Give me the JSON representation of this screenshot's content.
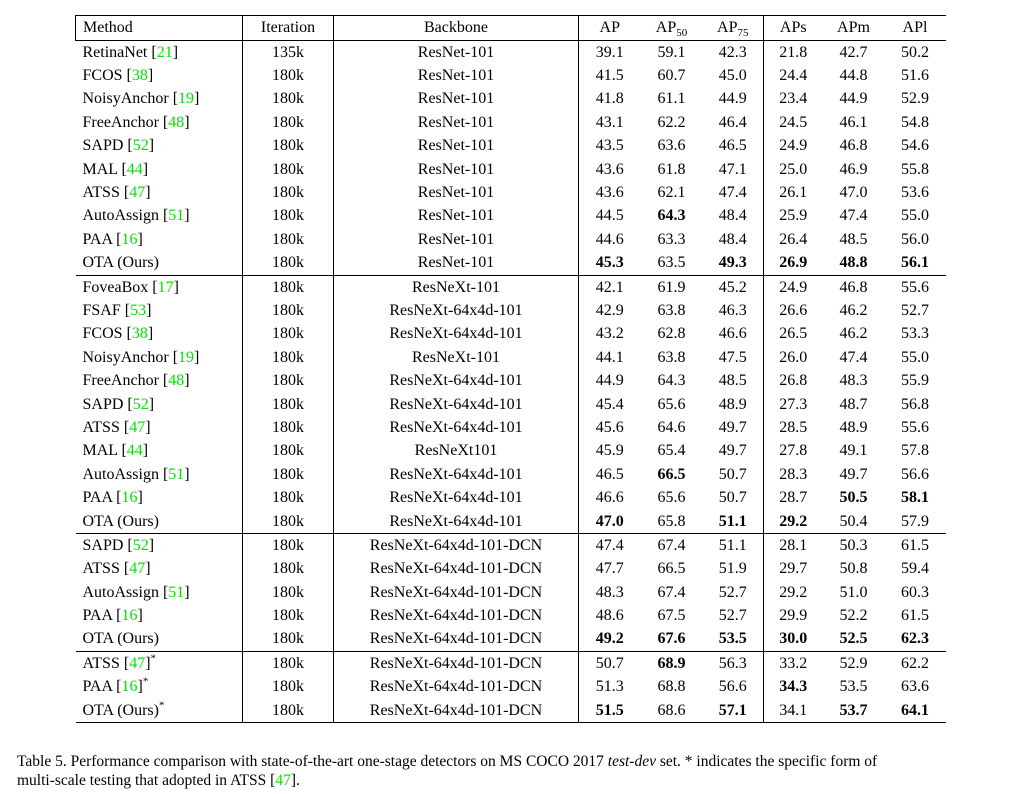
{
  "colors": {
    "reference_green": "#00E400",
    "text": "#000000",
    "background": "#ffffff"
  },
  "table": {
    "headers": [
      {
        "label": "Method",
        "sub": ""
      },
      {
        "label": "Iteration",
        "sub": ""
      },
      {
        "label": "Backbone",
        "sub": ""
      },
      {
        "label": "AP",
        "sub": ""
      },
      {
        "label": "AP",
        "sub": "50"
      },
      {
        "label": "AP",
        "sub": "75"
      },
      {
        "label": "APs",
        "sub": ""
      },
      {
        "label": "APm",
        "sub": ""
      },
      {
        "label": "APl",
        "sub": ""
      }
    ],
    "sections": [
      {
        "rows": [
          {
            "method": "RetinaNet",
            "ref": "21",
            "star": false,
            "iteration": "135k",
            "backbone": "ResNet-101",
            "vals": [
              "39.1",
              "59.1",
              "42.3",
              "21.8",
              "42.7",
              "50.2"
            ],
            "bold": []
          },
          {
            "method": "FCOS",
            "ref": "38",
            "star": false,
            "iteration": "180k",
            "backbone": "ResNet-101",
            "vals": [
              "41.5",
              "60.7",
              "45.0",
              "24.4",
              "44.8",
              "51.6"
            ],
            "bold": []
          },
          {
            "method": "NoisyAnchor",
            "ref": "19",
            "star": false,
            "iteration": "180k",
            "backbone": "ResNet-101",
            "vals": [
              "41.8",
              "61.1",
              "44.9",
              "23.4",
              "44.9",
              "52.9"
            ],
            "bold": []
          },
          {
            "method": "FreeAnchor",
            "ref": "48",
            "star": false,
            "iteration": "180k",
            "backbone": "ResNet-101",
            "vals": [
              "43.1",
              "62.2",
              "46.4",
              "24.5",
              "46.1",
              "54.8"
            ],
            "bold": []
          },
          {
            "method": "SAPD",
            "ref": "52",
            "star": false,
            "iteration": "180k",
            "backbone": "ResNet-101",
            "vals": [
              "43.5",
              "63.6",
              "46.5",
              "24.9",
              "46.8",
              "54.6"
            ],
            "bold": []
          },
          {
            "method": "MAL",
            "ref": "44",
            "star": false,
            "iteration": "180k",
            "backbone": "ResNet-101",
            "vals": [
              "43.6",
              "61.8",
              "47.1",
              "25.0",
              "46.9",
              "55.8"
            ],
            "bold": []
          },
          {
            "method": "ATSS",
            "ref": "47",
            "star": false,
            "iteration": "180k",
            "backbone": "ResNet-101",
            "vals": [
              "43.6",
              "62.1",
              "47.4",
              "26.1",
              "47.0",
              "53.6"
            ],
            "bold": []
          },
          {
            "method": "AutoAssign",
            "ref": "51",
            "star": false,
            "iteration": "180k",
            "backbone": "ResNet-101",
            "vals": [
              "44.5",
              "64.3",
              "48.4",
              "25.9",
              "47.4",
              "55.0"
            ],
            "bold": [
              1
            ]
          },
          {
            "method": "PAA",
            "ref": "16",
            "star": false,
            "iteration": "180k",
            "backbone": "ResNet-101",
            "vals": [
              "44.6",
              "63.3",
              "48.4",
              "26.4",
              "48.5",
              "56.0"
            ],
            "bold": []
          },
          {
            "method": "OTA (Ours)",
            "ref": null,
            "star": false,
            "iteration": "180k",
            "backbone": "ResNet-101",
            "vals": [
              "45.3",
              "63.5",
              "49.3",
              "26.9",
              "48.8",
              "56.1"
            ],
            "bold": [
              0,
              2,
              3,
              4,
              5
            ]
          }
        ]
      },
      {
        "rows": [
          {
            "method": "FoveaBox",
            "ref": "17",
            "star": false,
            "iteration": "180k",
            "backbone": "ResNeXt-101",
            "vals": [
              "42.1",
              "61.9",
              "45.2",
              "24.9",
              "46.8",
              "55.6"
            ],
            "bold": []
          },
          {
            "method": "FSAF",
            "ref": "53",
            "star": false,
            "iteration": "180k",
            "backbone": "ResNeXt-64x4d-101",
            "vals": [
              "42.9",
              "63.8",
              "46.3",
              "26.6",
              "46.2",
              "52.7"
            ],
            "bold": []
          },
          {
            "method": "FCOS",
            "ref": "38",
            "star": false,
            "iteration": "180k",
            "backbone": "ResNeXt-64x4d-101",
            "vals": [
              "43.2",
              "62.8",
              "46.6",
              "26.5",
              "46.2",
              "53.3"
            ],
            "bold": []
          },
          {
            "method": "NoisyAnchor",
            "ref": "19",
            "star": false,
            "iteration": "180k",
            "backbone": "ResNeXt-101",
            "vals": [
              "44.1",
              "63.8",
              "47.5",
              "26.0",
              "47.4",
              "55.0"
            ],
            "bold": []
          },
          {
            "method": "FreeAnchor",
            "ref": "48",
            "star": false,
            "iteration": "180k",
            "backbone": "ResNeXt-64x4d-101",
            "vals": [
              "44.9",
              "64.3",
              "48.5",
              "26.8",
              "48.3",
              "55.9"
            ],
            "bold": []
          },
          {
            "method": "SAPD",
            "ref": "52",
            "star": false,
            "iteration": "180k",
            "backbone": "ResNeXt-64x4d-101",
            "vals": [
              "45.4",
              "65.6",
              "48.9",
              "27.3",
              "48.7",
              "56.8"
            ],
            "bold": []
          },
          {
            "method": "ATSS",
            "ref": "47",
            "star": false,
            "iteration": "180k",
            "backbone": "ResNeXt-64x4d-101",
            "vals": [
              "45.6",
              "64.6",
              "49.7",
              "28.5",
              "48.9",
              "55.6"
            ],
            "bold": []
          },
          {
            "method": "MAL",
            "ref": "44",
            "star": false,
            "iteration": "180k",
            "backbone": "ResNeXt101",
            "vals": [
              "45.9",
              "65.4",
              "49.7",
              "27.8",
              "49.1",
              "57.8"
            ],
            "bold": []
          },
          {
            "method": "AutoAssign",
            "ref": "51",
            "star": false,
            "iteration": "180k",
            "backbone": "ResNeXt-64x4d-101",
            "vals": [
              "46.5",
              "66.5",
              "50.7",
              "28.3",
              "49.7",
              "56.6"
            ],
            "bold": [
              1
            ]
          },
          {
            "method": "PAA",
            "ref": "16",
            "star": false,
            "iteration": "180k",
            "backbone": "ResNeXt-64x4d-101",
            "vals": [
              "46.6",
              "65.6",
              "50.7",
              "28.7",
              "50.5",
              "58.1"
            ],
            "bold": [
              4,
              5
            ]
          },
          {
            "method": "OTA (Ours)",
            "ref": null,
            "star": false,
            "iteration": "180k",
            "backbone": "ResNeXt-64x4d-101",
            "vals": [
              "47.0",
              "65.8",
              "51.1",
              "29.2",
              "50.4",
              "57.9"
            ],
            "bold": [
              0,
              2,
              3
            ]
          }
        ]
      },
      {
        "rows": [
          {
            "method": "SAPD",
            "ref": "52",
            "star": false,
            "iteration": "180k",
            "backbone": "ResNeXt-64x4d-101-DCN",
            "vals": [
              "47.4",
              "67.4",
              "51.1",
              "28.1",
              "50.3",
              "61.5"
            ],
            "bold": []
          },
          {
            "method": "ATSS",
            "ref": "47",
            "star": false,
            "iteration": "180k",
            "backbone": "ResNeXt-64x4d-101-DCN",
            "vals": [
              "47.7",
              "66.5",
              "51.9",
              "29.7",
              "50.8",
              "59.4"
            ],
            "bold": []
          },
          {
            "method": "AutoAssign",
            "ref": "51",
            "star": false,
            "iteration": "180k",
            "backbone": "ResNeXt-64x4d-101-DCN",
            "vals": [
              "48.3",
              "67.4",
              "52.7",
              "29.2",
              "51.0",
              "60.3"
            ],
            "bold": []
          },
          {
            "method": "PAA",
            "ref": "16",
            "star": false,
            "iteration": "180k",
            "backbone": "ResNeXt-64x4d-101-DCN",
            "vals": [
              "48.6",
              "67.5",
              "52.7",
              "29.9",
              "52.2",
              "61.5"
            ],
            "bold": []
          },
          {
            "method": "OTA (Ours)",
            "ref": null,
            "star": false,
            "iteration": "180k",
            "backbone": "ResNeXt-64x4d-101-DCN",
            "vals": [
              "49.2",
              "67.6",
              "53.5",
              "30.0",
              "52.5",
              "62.3"
            ],
            "bold": [
              0,
              1,
              2,
              3,
              4,
              5
            ]
          }
        ]
      },
      {
        "rows": [
          {
            "method": "ATSS",
            "ref": "47",
            "star": true,
            "iteration": "180k",
            "backbone": "ResNeXt-64x4d-101-DCN",
            "vals": [
              "50.7",
              "68.9",
              "56.3",
              "33.2",
              "52.9",
              "62.2"
            ],
            "bold": [
              1
            ]
          },
          {
            "method": "PAA",
            "ref": "16",
            "star": true,
            "iteration": "180k",
            "backbone": "ResNeXt-64x4d-101-DCN",
            "vals": [
              "51.3",
              "68.8",
              "56.6",
              "34.3",
              "53.5",
              "63.6"
            ],
            "bold": [
              3
            ]
          },
          {
            "method": "OTA (Ours)",
            "ref": null,
            "star": true,
            "iteration": "180k",
            "backbone": "ResNeXt-64x4d-101-DCN",
            "vals": [
              "51.5",
              "68.6",
              "57.1",
              "34.1",
              "53.7",
              "64.1"
            ],
            "bold": [
              0,
              2,
              4,
              5
            ]
          }
        ]
      }
    ]
  },
  "caption": {
    "lines": [
      [
        {
          "t": "Table 5. Performance comparison with state-of-the-art one-stage detectors on MS COCO 2017 "
        },
        {
          "t": "test-dev",
          "s": "i"
        },
        {
          "t": " set. * indicates the specific form of"
        }
      ],
      [
        {
          "t": "multi-scale testing that adopted in ATSS ["
        },
        {
          "t": "47",
          "s": "g"
        },
        {
          "t": "]."
        }
      ]
    ]
  }
}
